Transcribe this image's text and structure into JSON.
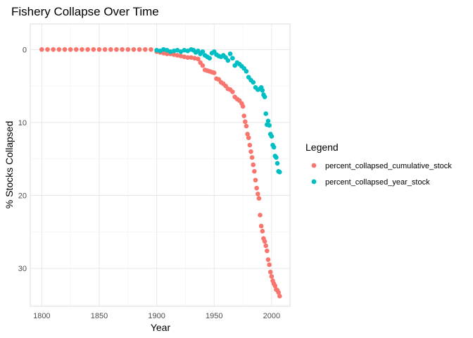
{
  "chart_data": {
    "type": "scatter",
    "title": "Fishery Collapse Over Time",
    "xlabel": "Year",
    "ylabel": "% Stocks Collapsed",
    "xlim": [
      1790,
      2016
    ],
    "ylim": [
      -3.5,
      35.2
    ],
    "y_reversed": true,
    "x_ticks": [
      1800,
      1850,
      1900,
      1950,
      2000
    ],
    "y_ticks": [
      0,
      10,
      20,
      30
    ],
    "grid": true,
    "legend": {
      "title": "Legend",
      "position": "right"
    },
    "series": [
      {
        "name": "percent_collapsed_cumulative_stock",
        "color": "#F8766D",
        "x": [
          1800,
          1805,
          1810,
          1815,
          1820,
          1825,
          1830,
          1835,
          1840,
          1845,
          1850,
          1855,
          1860,
          1865,
          1870,
          1875,
          1880,
          1885,
          1890,
          1895,
          1900,
          1903,
          1906,
          1909,
          1912,
          1915,
          1918,
          1921,
          1924,
          1927,
          1930,
          1933,
          1936,
          1938,
          1940,
          1942,
          1944,
          1946,
          1948,
          1950,
          1952,
          1954,
          1956,
          1958,
          1960,
          1962,
          1964,
          1966,
          1968,
          1970,
          1972,
          1974,
          1975,
          1976,
          1977,
          1978,
          1979,
          1980,
          1981,
          1982,
          1983,
          1984,
          1985,
          1986,
          1987,
          1988,
          1989,
          1990,
          1991,
          1992,
          1993,
          1994,
          1995,
          1996,
          1997,
          1998,
          1999,
          2000,
          2001,
          2002,
          2003,
          2004,
          2005,
          2006,
          2007
        ],
        "y": [
          0,
          0,
          0,
          0,
          0,
          0,
          0,
          0,
          0,
          0,
          0,
          0,
          0,
          0,
          0,
          0,
          0,
          0,
          0,
          0,
          0.3,
          0.4,
          0.5,
          0.6,
          0.6,
          0.7,
          0.8,
          0.9,
          1.0,
          1.1,
          1.1,
          1.2,
          1.3,
          1.8,
          2.2,
          2.8,
          2.9,
          3.0,
          3.1,
          3.2,
          4.0,
          4.1,
          4.5,
          4.7,
          5.0,
          5.4,
          5.5,
          5.8,
          6.5,
          6.8,
          7.0,
          7.4,
          7.8,
          9.1,
          9.9,
          10.5,
          11.6,
          12.1,
          13.1,
          14.0,
          14.8,
          15.8,
          16.7,
          17.9,
          19.0,
          19.8,
          20.4,
          22.7,
          24.2,
          24.9,
          25.9,
          26.3,
          26.9,
          27.6,
          28.8,
          29.5,
          30.5,
          31.1,
          31.7,
          32.1,
          32.4,
          32.9,
          33.0,
          33.3,
          33.8
        ]
      },
      {
        "name": "percent_collapsed_year_stock",
        "color": "#00BFC4",
        "x": [
          1900,
          1903,
          1906,
          1909,
          1912,
          1915,
          1918,
          1921,
          1924,
          1927,
          1930,
          1932,
          1934,
          1936,
          1938,
          1940,
          1942,
          1944,
          1946,
          1948,
          1950,
          1952,
          1954,
          1956,
          1958,
          1960,
          1962,
          1964,
          1966,
          1968,
          1970,
          1972,
          1974,
          1976,
          1978,
          1980,
          1982,
          1984,
          1986,
          1988,
          1990,
          1991,
          1992,
          1993,
          1994,
          1995,
          1996,
          1997,
          1998,
          1999,
          2000,
          2001,
          2002,
          2003,
          2004,
          2005,
          2006,
          2007
        ],
        "y": [
          0.1,
          0.2,
          0.0,
          0.1,
          0.3,
          0.2,
          0.1,
          0.3,
          0.1,
          0.2,
          0.0,
          0.1,
          0.4,
          0.2,
          0.6,
          0.3,
          0.8,
          1.0,
          1.2,
          0.5,
          0.3,
          0.7,
          0.9,
          1.0,
          0.8,
          1.1,
          1.5,
          0.6,
          1.2,
          2.2,
          1.8,
          2.0,
          2.3,
          2.6,
          3.0,
          3.8,
          4.2,
          4.5,
          5.2,
          5.5,
          5.4,
          5.2,
          5.6,
          6.2,
          6.5,
          8.8,
          10.3,
          9.8,
          10.4,
          11.6,
          11.9,
          13.1,
          13.4,
          14.6,
          14.8,
          15.6,
          16.7,
          16.8
        ]
      }
    ]
  }
}
